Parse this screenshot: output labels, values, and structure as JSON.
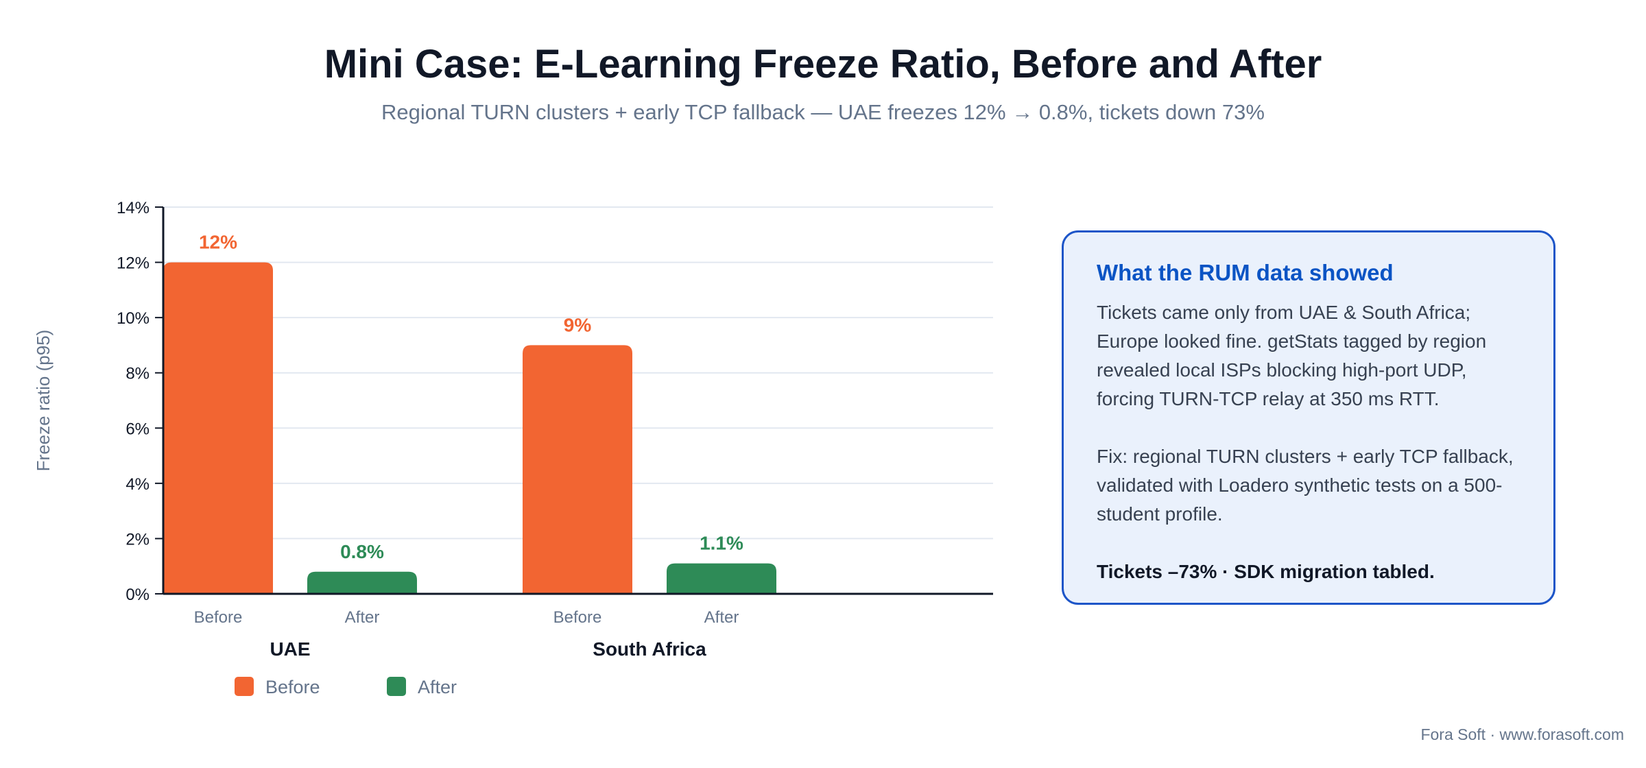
{
  "header": {
    "title": "Mini Case: E-Learning Freeze Ratio, Before and After",
    "subtitle": "Regional TURN clusters + early TCP fallback — UAE freezes 12% → 0.8%, tickets down 73%"
  },
  "chart_data": {
    "type": "bar",
    "ylabel": "Freeze ratio (p95)",
    "ylim": [
      0,
      14
    ],
    "yticks": [
      0,
      2,
      4,
      6,
      8,
      10,
      12,
      14
    ],
    "ytick_suffix": "%",
    "grid": true,
    "legend_position": "bottom-left",
    "groups": [
      {
        "name": "UAE",
        "bars": [
          {
            "label": "Before",
            "series": "Before",
            "value": 12,
            "data_label": "12%"
          },
          {
            "label": "After",
            "series": "After",
            "value": 0.8,
            "data_label": "0.8%"
          }
        ]
      },
      {
        "name": "South Africa",
        "bars": [
          {
            "label": "Before",
            "series": "Before",
            "value": 9,
            "data_label": "9%"
          },
          {
            "label": "After",
            "series": "After",
            "value": 1.1,
            "data_label": "1.1%"
          }
        ]
      }
    ],
    "series": [
      {
        "name": "Before",
        "color": "#f26532",
        "label_color": "#f26532"
      },
      {
        "name": "After",
        "color": "#2e8b57",
        "label_color": "#2e8b57"
      }
    ]
  },
  "card": {
    "title": "What the RUM data showed",
    "paragraph1": "Tickets came only from UAE & South Africa; Europe looked fine. getStats tagged by region revealed local ISPs blocking high-port UDP, forcing TURN-TCP relay at 350 ms RTT.",
    "paragraph2": "Fix: regional TURN clusters + early TCP fallback, validated with Loadero synthetic tests on a 500-student profile.",
    "conclusion": "Tickets –73% · SDK migration tabled."
  },
  "footer": {
    "credit": "Fora Soft · www.forasoft.com"
  },
  "colors": {
    "accent": "#0b54c4",
    "card_bg": "#eaf1fc",
    "card_border": "#1d55c8"
  }
}
